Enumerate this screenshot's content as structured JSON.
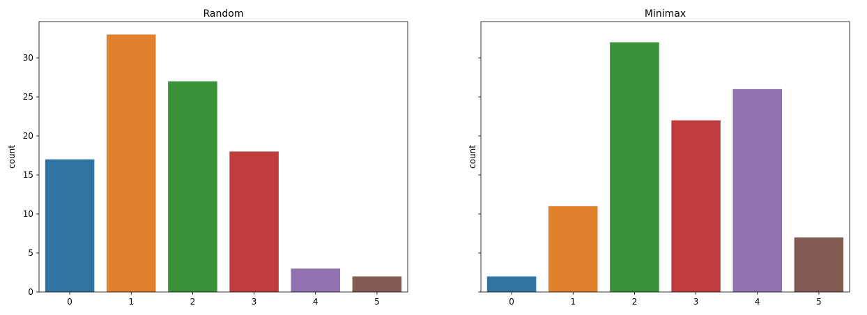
{
  "chart_data": [
    {
      "type": "bar",
      "title": "Random",
      "xlabel": "",
      "ylabel": "count",
      "categories": [
        "0",
        "1",
        "2",
        "3",
        "4",
        "5"
      ],
      "values": [
        17,
        33,
        27,
        18,
        3,
        2
      ],
      "ylim": [
        0,
        34.65
      ],
      "yticks": [
        0,
        5,
        10,
        15,
        20,
        25,
        30
      ],
      "ytick_labels": [
        "0",
        "5",
        "10",
        "15",
        "20",
        "25",
        "30"
      ],
      "show_ytick_labels": true,
      "grid": false,
      "colors": [
        "#3274a1",
        "#e1812c",
        "#3a923a",
        "#c03d3e",
        "#9372b2",
        "#845b53"
      ]
    },
    {
      "type": "bar",
      "title": "Minimax",
      "xlabel": "",
      "ylabel": "count",
      "categories": [
        "0",
        "1",
        "2",
        "3",
        "4",
        "5"
      ],
      "values": [
        2,
        11,
        32,
        22,
        26,
        7
      ],
      "ylim": [
        0,
        34.65
      ],
      "yticks": [
        0,
        5,
        10,
        15,
        20,
        25,
        30
      ],
      "ytick_labels": [
        "",
        "",
        "",
        "",
        "",
        "",
        ""
      ],
      "show_ytick_labels": false,
      "grid": false,
      "colors": [
        "#3274a1",
        "#e1812c",
        "#3a923a",
        "#c03d3e",
        "#9372b2",
        "#845b53"
      ]
    }
  ]
}
